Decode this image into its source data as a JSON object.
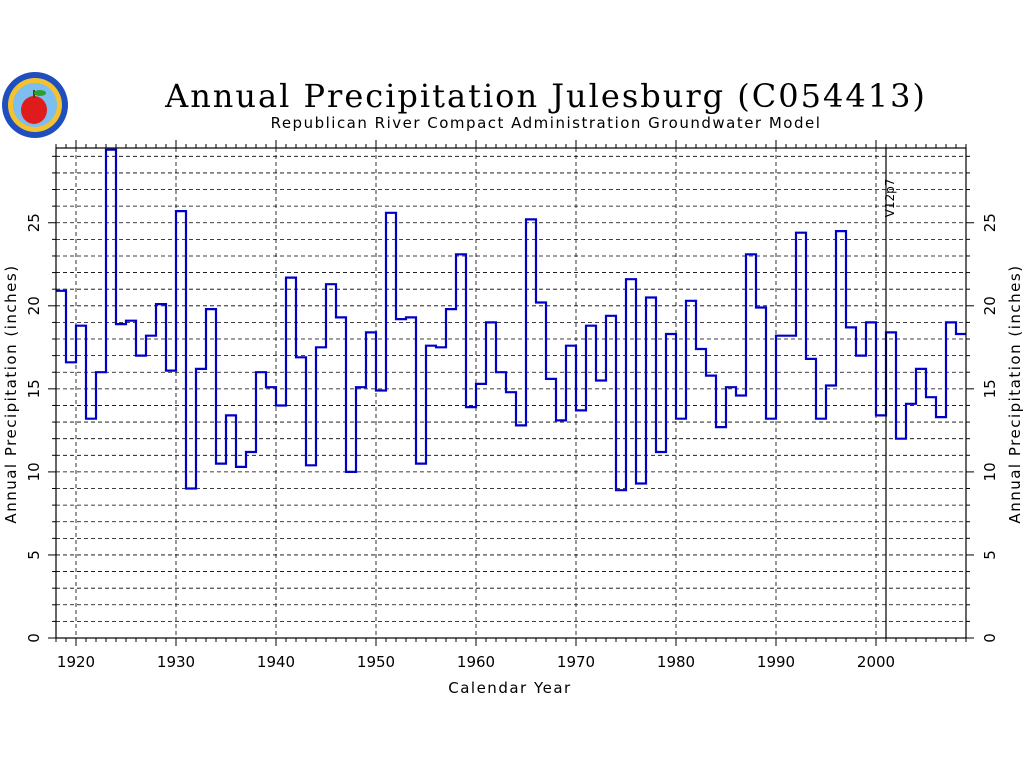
{
  "chart_data": {
    "type": "line",
    "step": true,
    "title": "Annual Precipitation Julesburg (C054413)",
    "subtitle": "Republican River Compact Administration Groundwater Model",
    "xlabel": "Calendar Year",
    "ylabel": "Annual Precipitation (inches)",
    "xlim": [
      1918,
      2009
    ],
    "ylim": [
      0,
      29.5
    ],
    "xticks": [
      1920,
      1930,
      1940,
      1950,
      1960,
      1970,
      1980,
      1990,
      2000
    ],
    "yticks": [
      0,
      5,
      10,
      15,
      20,
      25
    ],
    "grid": true,
    "annotation": {
      "text": "V12p7",
      "x": 2001
    },
    "colors": {
      "series": "#0000c8",
      "gap_series": "#4a4a8c"
    },
    "series": [
      {
        "start_year": 1918,
        "values": [
          20.9,
          16.6,
          18.8,
          13.2,
          16.0,
          29.4,
          18.9,
          19.1,
          17.0,
          18.2,
          20.1,
          16.1,
          25.7,
          9.0,
          16.2,
          19.8,
          10.5,
          13.4,
          10.3,
          11.2,
          16.0,
          15.1,
          14.0,
          21.7,
          16.9,
          10.4,
          17.5,
          21.3,
          19.3,
          10.0,
          15.1,
          18.4,
          14.9,
          25.6,
          19.2,
          19.3,
          10.5,
          17.6,
          17.5,
          19.8,
          23.1,
          13.9,
          15.3,
          19.0,
          16.0,
          14.8,
          12.8,
          25.2,
          20.2,
          15.6,
          13.1,
          17.6,
          13.7,
          18.8,
          15.5,
          19.4,
          8.9,
          21.6,
          9.3,
          20.5,
          11.2,
          18.3,
          13.2,
          20.3,
          17.4,
          15.8,
          12.7,
          15.1,
          14.6,
          23.1,
          19.9,
          13.2,
          18.2,
          18.2,
          24.4,
          16.8,
          13.2,
          15.2,
          24.5,
          18.7,
          17.0,
          19.0,
          13.4,
          18.4,
          12.0,
          14.1,
          16.2,
          14.5,
          13.3,
          19.0,
          18.3
        ]
      }
    ]
  }
}
